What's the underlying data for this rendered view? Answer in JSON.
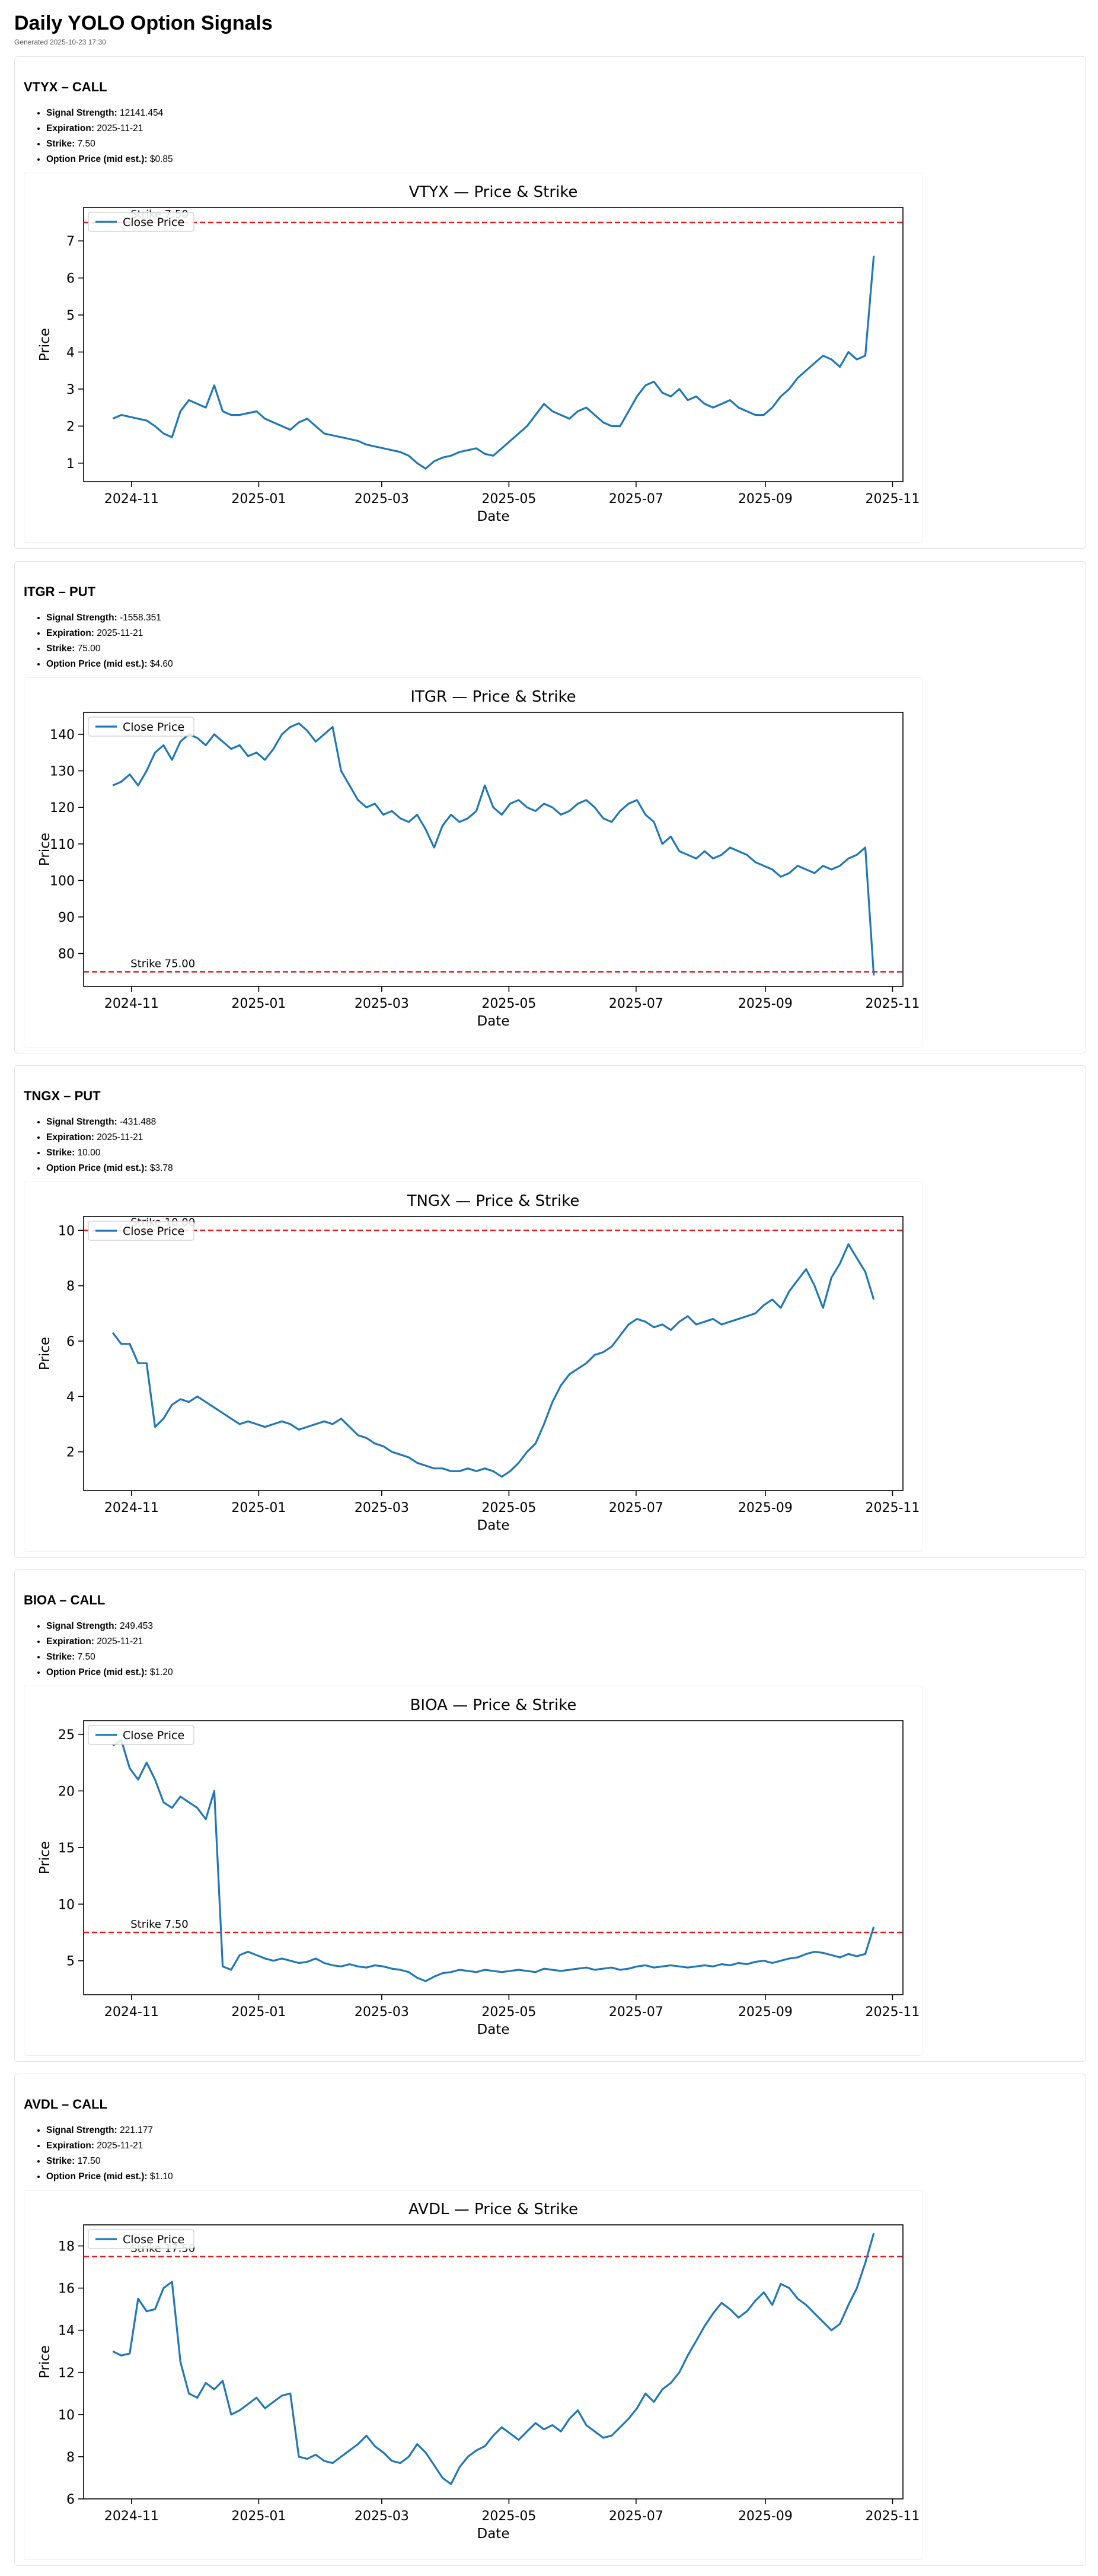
{
  "page": {
    "title": "Daily YOLO Option Signals",
    "generated": "Generated 2025-10-23 17:30"
  },
  "labels": {
    "signal_strength": "Signal Strength:",
    "expiration": "Expiration:",
    "strike": "Strike:",
    "option_price": "Option Price (mid est.):"
  },
  "cards": [
    {
      "title": "VTYX – CALL",
      "signal_strength": "12141.454",
      "expiration": "2025-11-21",
      "strike": "7.50",
      "option_price": "$0.85",
      "chart_data": {
        "type": "line",
        "title": "VTYX — Price & Strike",
        "xlabel": "Date",
        "ylabel": "Price",
        "legend": "Close Price",
        "legend_position": "top-left",
        "strike_label": "Strike 7.50",
        "strike_value": 7.5,
        "ylim": [
          0.5,
          7.9
        ],
        "yticks": [
          1,
          2,
          3,
          4,
          5,
          6,
          7
        ],
        "xticks": [
          "2024-11",
          "2025-01",
          "2025-03",
          "2025-05",
          "2025-07",
          "2025-09",
          "2025-11"
        ],
        "series": [
          {
            "name": "Close Price",
            "x_start": "2024-10-23",
            "x_end": "2025-10-23",
            "values": [
              2.2,
              2.3,
              2.25,
              2.2,
              2.15,
              2.0,
              1.8,
              1.7,
              2.4,
              2.7,
              2.6,
              2.5,
              3.1,
              2.4,
              2.3,
              2.3,
              2.35,
              2.4,
              2.2,
              2.1,
              2.0,
              1.9,
              2.1,
              2.2,
              2.0,
              1.8,
              1.75,
              1.7,
              1.65,
              1.6,
              1.5,
              1.45,
              1.4,
              1.35,
              1.3,
              1.2,
              1.0,
              0.85,
              1.05,
              1.15,
              1.2,
              1.3,
              1.35,
              1.4,
              1.25,
              1.2,
              1.4,
              1.6,
              1.8,
              2.0,
              2.3,
              2.6,
              2.4,
              2.3,
              2.2,
              2.4,
              2.5,
              2.3,
              2.1,
              2.0,
              2.0,
              2.4,
              2.8,
              3.1,
              3.2,
              2.9,
              2.8,
              3.0,
              2.7,
              2.8,
              2.6,
              2.5,
              2.6,
              2.7,
              2.5,
              2.4,
              2.3,
              2.3,
              2.5,
              2.8,
              3.0,
              3.3,
              3.5,
              3.7,
              3.9,
              3.8,
              3.6,
              4.0,
              3.8,
              3.9,
              6.6
            ]
          }
        ]
      }
    },
    {
      "title": "ITGR – PUT",
      "signal_strength": "-1558.351",
      "expiration": "2025-11-21",
      "strike": "75.00",
      "option_price": "$4.60",
      "chart_data": {
        "type": "line",
        "title": "ITGR — Price & Strike",
        "xlabel": "Date",
        "ylabel": "Price",
        "legend": "Close Price",
        "legend_position": "top-left",
        "strike_label": "Strike 75.00",
        "strike_value": 75,
        "ylim": [
          71,
          146
        ],
        "yticks": [
          80,
          90,
          100,
          110,
          120,
          130,
          140
        ],
        "xticks": [
          "2024-11",
          "2025-01",
          "2025-03",
          "2025-05",
          "2025-07",
          "2025-09",
          "2025-11"
        ],
        "series": [
          {
            "name": "Close Price",
            "x_start": "2024-10-23",
            "x_end": "2025-10-23",
            "values": [
              126,
              127,
              129,
              126,
              130,
              135,
              137,
              133,
              138,
              140,
              139,
              137,
              140,
              138,
              136,
              137,
              134,
              135,
              133,
              136,
              140,
              142,
              143,
              141,
              138,
              140,
              142,
              130,
              126,
              122,
              120,
              121,
              118,
              119,
              117,
              116,
              118,
              114,
              109,
              115,
              118,
              116,
              117,
              119,
              126,
              120,
              118,
              121,
              122,
              120,
              119,
              121,
              120,
              118,
              119,
              121,
              122,
              120,
              117,
              116,
              119,
              121,
              122,
              118,
              116,
              110,
              112,
              108,
              107,
              106,
              108,
              106,
              107,
              109,
              108,
              107,
              105,
              104,
              103,
              101,
              102,
              104,
              103,
              102,
              104,
              103,
              104,
              106,
              107,
              109,
              74
            ]
          }
        ]
      }
    },
    {
      "title": "TNGX – PUT",
      "signal_strength": "-431.488",
      "expiration": "2025-11-21",
      "strike": "10.00",
      "option_price": "$3.78",
      "chart_data": {
        "type": "line",
        "title": "TNGX — Price & Strike",
        "xlabel": "Date",
        "ylabel": "Price",
        "legend": "Close Price",
        "legend_position": "top-left",
        "strike_label": "Strike 10.00",
        "strike_value": 10,
        "ylim": [
          0.6,
          10.5
        ],
        "yticks": [
          2,
          4,
          6,
          8,
          10
        ],
        "xticks": [
          "2024-11",
          "2025-01",
          "2025-03",
          "2025-05",
          "2025-07",
          "2025-09",
          "2025-11"
        ],
        "series": [
          {
            "name": "Close Price",
            "x_start": "2024-10-23",
            "x_end": "2025-10-23",
            "values": [
              6.3,
              5.9,
              5.9,
              5.2,
              5.2,
              2.9,
              3.2,
              3.7,
              3.9,
              3.8,
              4.0,
              3.8,
              3.6,
              3.4,
              3.2,
              3.0,
              3.1,
              3.0,
              2.9,
              3.0,
              3.1,
              3.0,
              2.8,
              2.9,
              3.0,
              3.1,
              3.0,
              3.2,
              2.9,
              2.6,
              2.5,
              2.3,
              2.2,
              2.0,
              1.9,
              1.8,
              1.6,
              1.5,
              1.4,
              1.4,
              1.3,
              1.3,
              1.4,
              1.3,
              1.4,
              1.3,
              1.1,
              1.3,
              1.6,
              2.0,
              2.3,
              3.0,
              3.8,
              4.4,
              4.8,
              5.0,
              5.2,
              5.5,
              5.6,
              5.8,
              6.2,
              6.6,
              6.8,
              6.7,
              6.5,
              6.6,
              6.4,
              6.7,
              6.9,
              6.6,
              6.7,
              6.8,
              6.6,
              6.7,
              6.8,
              6.9,
              7.0,
              7.3,
              7.5,
              7.2,
              7.8,
              8.2,
              8.6,
              8.0,
              7.2,
              8.3,
              8.8,
              9.5,
              9.0,
              8.5,
              7.5
            ]
          }
        ]
      }
    },
    {
      "title": "BIOA – CALL",
      "signal_strength": "249.453",
      "expiration": "2025-11-21",
      "strike": "7.50",
      "option_price": "$1.20",
      "chart_data": {
        "type": "line",
        "title": "BIOA — Price & Strike",
        "xlabel": "Date",
        "ylabel": "Price",
        "legend": "Close Price",
        "legend_position": "top-left",
        "strike_label": "Strike 7.50",
        "strike_value": 7.5,
        "ylim": [
          2.0,
          26.2
        ],
        "yticks": [
          5,
          10,
          15,
          20,
          25
        ],
        "xticks": [
          "2024-11",
          "2025-01",
          "2025-03",
          "2025-05",
          "2025-07",
          "2025-09",
          "2025-11"
        ],
        "series": [
          {
            "name": "Close Price",
            "x_start": "2024-10-23",
            "x_end": "2025-10-23",
            "values": [
              24.0,
              24.5,
              22.0,
              21.0,
              22.5,
              21.0,
              19.0,
              18.5,
              19.5,
              19.0,
              18.5,
              17.5,
              20.0,
              4.5,
              4.2,
              5.5,
              5.8,
              5.5,
              5.2,
              5.0,
              5.2,
              5.0,
              4.8,
              4.9,
              5.2,
              4.8,
              4.6,
              4.5,
              4.7,
              4.5,
              4.4,
              4.6,
              4.5,
              4.3,
              4.2,
              4.0,
              3.5,
              3.2,
              3.6,
              3.9,
              4.0,
              4.2,
              4.1,
              4.0,
              4.2,
              4.1,
              4.0,
              4.1,
              4.2,
              4.1,
              4.0,
              4.3,
              4.2,
              4.1,
              4.2,
              4.3,
              4.4,
              4.2,
              4.3,
              4.4,
              4.2,
              4.3,
              4.5,
              4.6,
              4.4,
              4.5,
              4.6,
              4.5,
              4.4,
              4.5,
              4.6,
              4.5,
              4.7,
              4.6,
              4.8,
              4.7,
              4.9,
              5.0,
              4.8,
              5.0,
              5.2,
              5.3,
              5.6,
              5.8,
              5.7,
              5.5,
              5.3,
              5.6,
              5.4,
              5.6,
              8.0
            ]
          }
        ]
      }
    },
    {
      "title": "AVDL – CALL",
      "signal_strength": "221.177",
      "expiration": "2025-11-21",
      "strike": "17.50",
      "option_price": "$1.10",
      "chart_data": {
        "type": "line",
        "title": "AVDL — Price & Strike",
        "xlabel": "Date",
        "ylabel": "Price",
        "legend": "Close Price",
        "legend_position": "top-left",
        "strike_label": "Strike 17.50",
        "strike_value": 17.5,
        "ylim": [
          6.0,
          19.0
        ],
        "yticks": [
          6,
          8,
          10,
          12,
          14,
          16,
          18
        ],
        "xticks": [
          "2024-11",
          "2025-01",
          "2025-03",
          "2025-05",
          "2025-07",
          "2025-09",
          "2025-11"
        ],
        "series": [
          {
            "name": "Close Price",
            "x_start": "2024-10-23",
            "x_end": "2025-10-23",
            "values": [
              13.0,
              12.8,
              12.9,
              15.5,
              14.9,
              15.0,
              16.0,
              16.3,
              12.5,
              11.0,
              10.8,
              11.5,
              11.2,
              11.6,
              10.0,
              10.2,
              10.5,
              10.8,
              10.3,
              10.6,
              10.9,
              11.0,
              8.0,
              7.9,
              8.1,
              7.8,
              7.7,
              8.0,
              8.3,
              8.6,
              9.0,
              8.5,
              8.2,
              7.8,
              7.7,
              8.0,
              8.6,
              8.2,
              7.6,
              7.0,
              6.7,
              7.5,
              8.0,
              8.3,
              8.5,
              9.0,
              9.4,
              9.1,
              8.8,
              9.2,
              9.6,
              9.3,
              9.5,
              9.2,
              9.8,
              10.2,
              9.5,
              9.2,
              8.9,
              9.0,
              9.4,
              9.8,
              10.3,
              11.0,
              10.6,
              11.2,
              11.5,
              12.0,
              12.8,
              13.5,
              14.2,
              14.8,
              15.3,
              15.0,
              14.6,
              14.9,
              15.4,
              15.8,
              15.2,
              16.2,
              16.0,
              15.5,
              15.2,
              14.8,
              14.4,
              14.0,
              14.3,
              15.2,
              16.0,
              17.2,
              18.6
            ]
          }
        ]
      }
    }
  ]
}
